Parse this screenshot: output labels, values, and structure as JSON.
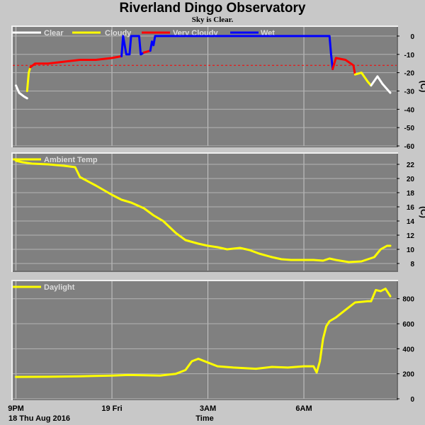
{
  "title": "Riverland Dingo Observatory",
  "subtitle": "Sky is Clear.",
  "x_ticks": [
    "9PM",
    "19 Fri",
    "3AM",
    "6AM"
  ],
  "x_date_label": "18 Thu Aug 2016",
  "x_axis_label": "Time",
  "colors": {
    "clear": "#ffffff",
    "cloudy": "#ffff00",
    "very_cloudy": "#ff0000",
    "wet": "#0000ff"
  },
  "chart_data": [
    {
      "type": "line",
      "name": "sky",
      "legend": [
        {
          "label": "Clear",
          "color": "#ffffff"
        },
        {
          "label": "Cloudy",
          "color": "#ffff00"
        },
        {
          "label": "Very Cloudy",
          "color": "#ff0000"
        },
        {
          "label": "Wet",
          "color": "#0000ff"
        }
      ],
      "ylabel": "(C)",
      "ylim": [
        -60,
        5
      ],
      "yticks": [
        0,
        -10,
        -20,
        -30,
        -40,
        -50,
        -60
      ],
      "threshold": -16,
      "x_hours_range": [
        -0.1,
        11.9
      ],
      "series": [
        {
          "name": "Clear",
          "color": "#ffffff",
          "points": [
            [
              0,
              -27
            ],
            [
              0.1,
              -31
            ],
            [
              0.25,
              -33
            ],
            [
              0.35,
              -34
            ]
          ]
        },
        {
          "name": "Cloudy",
          "color": "#ffff00",
          "points": [
            [
              0.35,
              -30
            ],
            [
              0.4,
              -20
            ],
            [
              0.45,
              -17
            ]
          ]
        },
        {
          "name": "Very Cloudy",
          "color": "#ff0000",
          "points": [
            [
              0.45,
              -17
            ],
            [
              0.6,
              -15
            ],
            [
              1,
              -15
            ],
            [
              1.5,
              -14
            ],
            [
              2,
              -13
            ],
            [
              2.5,
              -13
            ],
            [
              3,
              -12
            ],
            [
              3.3,
              -11
            ]
          ]
        },
        {
          "name": "Wet",
          "color": "#0000ff",
          "points": [
            [
              3.3,
              -11
            ],
            [
              3.35,
              0
            ],
            [
              3.45,
              -10
            ],
            [
              3.55,
              -10
            ],
            [
              3.6,
              0
            ],
            [
              3.85,
              0
            ],
            [
              3.9,
              -10
            ],
            [
              4,
              -9
            ]
          ]
        },
        {
          "name": "Very Cloudy",
          "color": "#ff0000",
          "points": [
            [
              4,
              -9
            ],
            [
              4.2,
              -8
            ]
          ]
        },
        {
          "name": "Wet",
          "color": "#0000ff",
          "points": [
            [
              4.2,
              -8
            ],
            [
              4.25,
              -3
            ],
            [
              4.3,
              -5
            ],
            [
              4.35,
              0
            ],
            [
              9.8,
              0
            ],
            [
              9.85,
              -10
            ],
            [
              9.9,
              -18
            ]
          ]
        },
        {
          "name": "Very Cloudy",
          "color": "#ff0000",
          "points": [
            [
              9.9,
              -18
            ],
            [
              10,
              -12
            ],
            [
              10.3,
              -13
            ],
            [
              10.55,
              -16
            ],
            [
              10.6,
              -21
            ]
          ]
        },
        {
          "name": "Cloudy",
          "color": "#ffff00",
          "points": [
            [
              10.6,
              -21
            ],
            [
              10.8,
              -20
            ],
            [
              11,
              -25
            ],
            [
              11.1,
              -27
            ]
          ]
        },
        {
          "name": "Clear",
          "color": "#ffffff",
          "points": [
            [
              11.1,
              -27
            ],
            [
              11.3,
              -22
            ],
            [
              11.45,
              -26
            ],
            [
              11.55,
              -28
            ],
            [
              11.7,
              -31
            ]
          ]
        }
      ]
    },
    {
      "type": "line",
      "name": "ambient",
      "legend": [
        {
          "label": "Ambient Temp",
          "color": "#ffff00"
        }
      ],
      "ylabel": "(C)",
      "ylim": [
        7,
        23.5
      ],
      "yticks": [
        22,
        20,
        18,
        16,
        14,
        12,
        10,
        8
      ],
      "x_hours_range": [
        -0.1,
        11.9
      ],
      "series": [
        {
          "name": "Ambient Temp",
          "color": "#ffff00",
          "points": [
            [
              0,
              22.5
            ],
            [
              0.2,
              22.3
            ],
            [
              0.5,
              22.1
            ],
            [
              1,
              22
            ],
            [
              1.5,
              21.8
            ],
            [
              1.85,
              21.6
            ],
            [
              2,
              20.2
            ],
            [
              2.5,
              19
            ],
            [
              3,
              17.7
            ],
            [
              3.3,
              17
            ],
            [
              3.6,
              16.6
            ],
            [
              4,
              15.8
            ],
            [
              4.3,
              14.8
            ],
            [
              4.6,
              14
            ],
            [
              5,
              12.3
            ],
            [
              5.3,
              11.3
            ],
            [
              5.7,
              10.8
            ],
            [
              6,
              10.5
            ],
            [
              6.3,
              10.3
            ],
            [
              6.6,
              10
            ],
            [
              7,
              10.2
            ],
            [
              7.3,
              9.9
            ],
            [
              7.6,
              9.4
            ],
            [
              8,
              8.9
            ],
            [
              8.3,
              8.6
            ],
            [
              8.6,
              8.5
            ],
            [
              9,
              8.5
            ],
            [
              9.3,
              8.5
            ],
            [
              9.6,
              8.4
            ],
            [
              9.8,
              8.7
            ],
            [
              10,
              8.5
            ],
            [
              10.4,
              8.2
            ],
            [
              10.8,
              8.3
            ],
            [
              11.2,
              8.9
            ],
            [
              11.4,
              10
            ],
            [
              11.6,
              10.5
            ],
            [
              11.7,
              10.5
            ]
          ]
        }
      ]
    },
    {
      "type": "line",
      "name": "daylight",
      "legend": [
        {
          "label": "Daylight",
          "color": "#ffff00"
        }
      ],
      "ylabel": "",
      "ylim": [
        0,
        940
      ],
      "yticks": [
        800,
        600,
        400,
        200,
        0
      ],
      "x_hours_range": [
        -0.1,
        11.9
      ],
      "series": [
        {
          "name": "Daylight",
          "color": "#ffff00",
          "points": [
            [
              0,
              175
            ],
            [
              1,
              176
            ],
            [
              2,
              180
            ],
            [
              3,
              185
            ],
            [
              3.5,
              190
            ],
            [
              4,
              188
            ],
            [
              4.5,
              186
            ],
            [
              5,
              200
            ],
            [
              5.3,
              230
            ],
            [
              5.5,
              300
            ],
            [
              5.7,
              320
            ],
            [
              6,
              290
            ],
            [
              6.3,
              260
            ],
            [
              6.8,
              250
            ],
            [
              7.5,
              240
            ],
            [
              8,
              255
            ],
            [
              8.5,
              250
            ],
            [
              9,
              260
            ],
            [
              9.3,
              260
            ],
            [
              9.4,
              210
            ],
            [
              9.5,
              300
            ],
            [
              9.6,
              480
            ],
            [
              9.7,
              580
            ],
            [
              9.8,
              620
            ],
            [
              10,
              650
            ],
            [
              10.3,
              710
            ],
            [
              10.6,
              770
            ],
            [
              11,
              780
            ],
            [
              11.1,
              780
            ],
            [
              11.25,
              870
            ],
            [
              11.4,
              860
            ],
            [
              11.55,
              880
            ],
            [
              11.7,
              820
            ]
          ]
        }
      ]
    }
  ]
}
